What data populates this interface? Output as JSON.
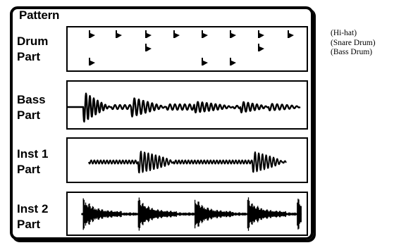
{
  "title": "Pattern",
  "parts": [
    {
      "id": "drum",
      "line1": "Drum",
      "line2": "Part"
    },
    {
      "id": "bass",
      "line1": "Bass",
      "line2": "Part"
    },
    {
      "id": "inst1",
      "line1": "Inst 1",
      "line2": "Part"
    },
    {
      "id": "inst2",
      "line1": "Inst 2",
      "line2": "Part"
    }
  ],
  "legend": {
    "hihat": "(Hi-hat)",
    "snare": "(Snare Drum)",
    "bass_drum": "(Bass Drum)"
  }
}
